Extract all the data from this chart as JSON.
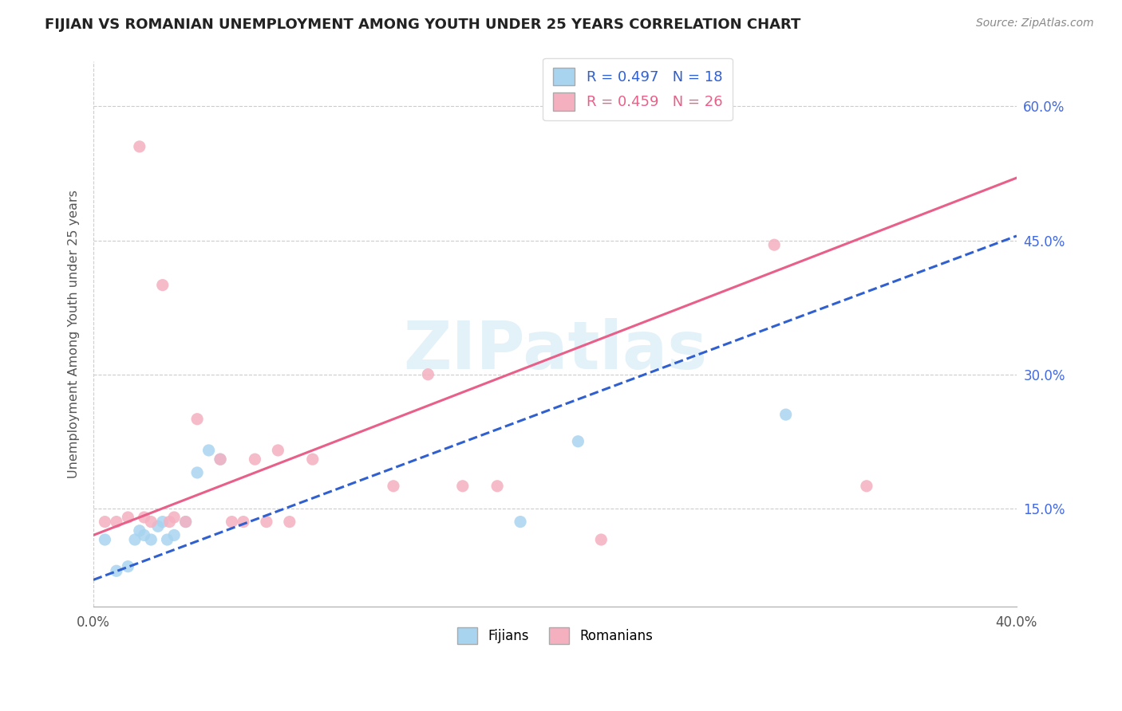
{
  "title": "FIJIAN VS ROMANIAN UNEMPLOYMENT AMONG YOUTH UNDER 25 YEARS CORRELATION CHART",
  "source": "Source: ZipAtlas.com",
  "ylabel": "Unemployment Among Youth under 25 years",
  "xlim": [
    0.0,
    0.4
  ],
  "ylim": [
    0.04,
    0.65
  ],
  "ytick_vals": [
    0.15,
    0.3,
    0.45,
    0.6
  ],
  "fijians_x": [
    0.005,
    0.01,
    0.015,
    0.018,
    0.02,
    0.022,
    0.025,
    0.028,
    0.03,
    0.032,
    0.035,
    0.04,
    0.045,
    0.05,
    0.055,
    0.185,
    0.21,
    0.3
  ],
  "fijians_y": [
    0.115,
    0.08,
    0.085,
    0.115,
    0.125,
    0.12,
    0.115,
    0.13,
    0.135,
    0.115,
    0.12,
    0.135,
    0.19,
    0.215,
    0.205,
    0.135,
    0.225,
    0.255
  ],
  "romanians_x": [
    0.005,
    0.01,
    0.015,
    0.02,
    0.022,
    0.025,
    0.03,
    0.033,
    0.035,
    0.04,
    0.045,
    0.055,
    0.06,
    0.065,
    0.07,
    0.075,
    0.08,
    0.085,
    0.095,
    0.13,
    0.145,
    0.16,
    0.175,
    0.22,
    0.295,
    0.335
  ],
  "romanians_y": [
    0.135,
    0.135,
    0.14,
    0.555,
    0.14,
    0.135,
    0.4,
    0.135,
    0.14,
    0.135,
    0.25,
    0.205,
    0.135,
    0.135,
    0.205,
    0.135,
    0.215,
    0.135,
    0.205,
    0.175,
    0.3,
    0.175,
    0.175,
    0.115,
    0.445,
    0.175
  ],
  "fijian_color": "#a8d4f0",
  "romanian_color": "#f5b0c0",
  "fijian_line_color": "#3060d0",
  "romanian_line_color": "#e8608a",
  "fijian_line_style": "--",
  "romanian_line_style": "-",
  "R_fijian": 0.497,
  "N_fijian": 18,
  "R_romanian": 0.459,
  "N_romanian": 26,
  "fijian_trend_x0": 0.0,
  "fijian_trend_y0": 0.07,
  "fijian_trend_x1": 0.4,
  "fijian_trend_y1": 0.455,
  "romanian_trend_x0": 0.0,
  "romanian_trend_y0": 0.12,
  "romanian_trend_x1": 0.4,
  "romanian_trend_y1": 0.52
}
